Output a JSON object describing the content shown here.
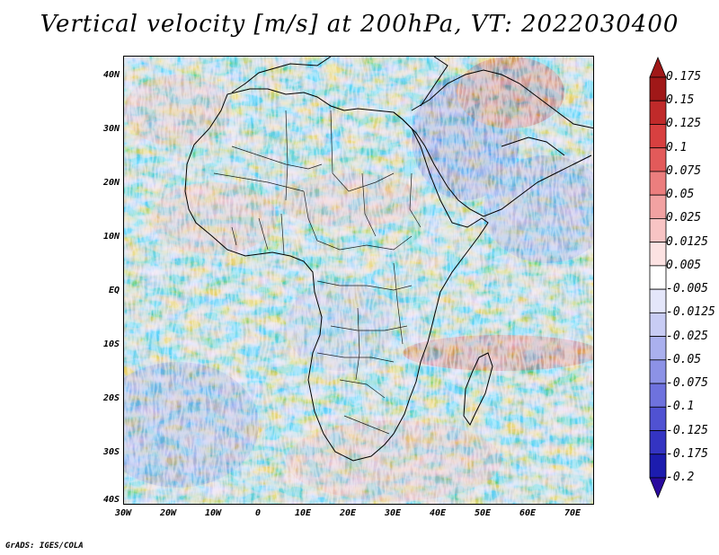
{
  "title": "Vertical velocity [m/s] at 200hPa, VT: 2022030400",
  "footer": "GrADS: IGES/COLA",
  "map": {
    "lat_labels": [
      "40N",
      "30N",
      "20N",
      "10N",
      "EQ",
      "10S",
      "20S",
      "30S",
      "40S"
    ],
    "lon_labels": [
      "30W",
      "20W",
      "10W",
      "0",
      "10E",
      "20E",
      "30E",
      "40E",
      "50E",
      "60E",
      "70E"
    ],
    "lon_range": [
      -30,
      75
    ],
    "lat_range": [
      -40,
      45
    ]
  },
  "colorbar": {
    "labels": [
      "0.175",
      "0.15",
      "0.125",
      "0.1",
      "0.075",
      "0.05",
      "0.025",
      "0.0125",
      "0.005",
      "-0.005",
      "-0.0125",
      "-0.025",
      "-0.05",
      "-0.075",
      "-0.1",
      "-0.125",
      "-0.175",
      "-0.2"
    ],
    "colors": [
      "#a01818",
      "#c02a2a",
      "#d84040",
      "#e25a5a",
      "#ec7e7e",
      "#f2a2a2",
      "#f8c4c4",
      "#fce2e2",
      "#ffffff",
      "#e4e6fa",
      "#c8ccf4",
      "#aab0ee",
      "#8c92e6",
      "#6e72de",
      "#5052d2",
      "#3434c2",
      "#1c1cae"
    ],
    "top_arrow_color": "#a01818",
    "bottom_arrow_color": "#2a0a9e"
  }
}
